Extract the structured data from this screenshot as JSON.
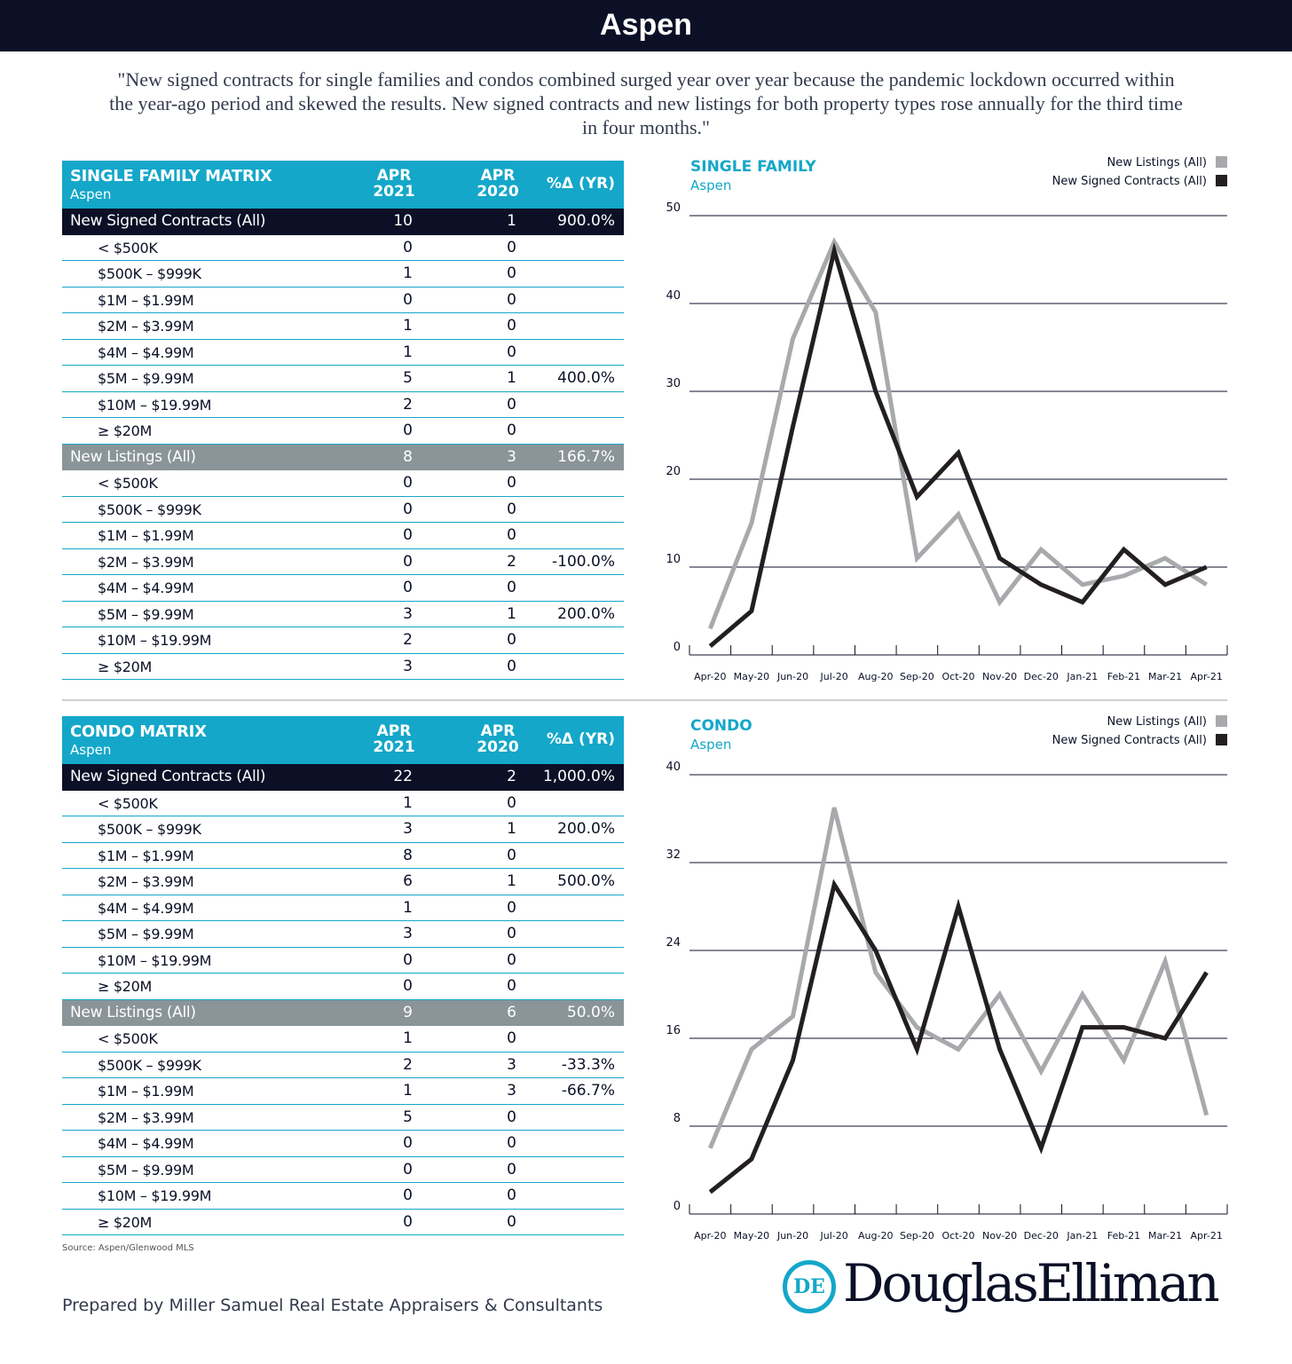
{
  "header": {
    "title": "Aspen"
  },
  "quote": "\"New signed contracts for single families and condos combined surged year over year because the pandemic lockdown occurred within the year-ago period and skewed the results. New signed contracts and new listings for both property types rose annually for the third time in four months.\"",
  "tables": [
    {
      "title": "SINGLE FAMILY MATRIX",
      "subtitle": "Aspen",
      "columns": [
        "APR 2021",
        "APR 2020",
        "%Δ (YR)"
      ],
      "sections": [
        {
          "label": "New Signed Contracts (All)",
          "values": [
            10,
            1
          ],
          "change": "900.0%",
          "rows": [
            {
              "label": "< $500K",
              "values": [
                0,
                0
              ]
            },
            {
              "label": "$500K – $999K",
              "values": [
                1,
                0
              ]
            },
            {
              "label": "$1M – $1.99M",
              "values": [
                0,
                0
              ]
            },
            {
              "label": "$2M – $3.99M",
              "values": [
                1,
                0
              ]
            },
            {
              "label": "$4M – $4.99M",
              "values": [
                1,
                0
              ]
            },
            {
              "label": "$5M – $9.99M",
              "values": [
                5,
                1
              ],
              "change": "400.0%"
            },
            {
              "label": "$10M – $19.99M",
              "values": [
                2,
                0
              ]
            },
            {
              "label": "≥ $20M",
              "values": [
                0,
                0
              ]
            }
          ]
        },
        {
          "label": "New Listings (All)",
          "values": [
            8,
            3
          ],
          "change": "166.7%",
          "rows": [
            {
              "label": "< $500K",
              "values": [
                0,
                0
              ]
            },
            {
              "label": "$500K – $999K",
              "values": [
                0,
                0
              ]
            },
            {
              "label": "$1M – $1.99M",
              "values": [
                0,
                0
              ]
            },
            {
              "label": "$2M – $3.99M",
              "values": [
                0,
                2
              ],
              "change": "-100.0%"
            },
            {
              "label": "$4M – $4.99M",
              "values": [
                0,
                0
              ]
            },
            {
              "label": "$5M – $9.99M",
              "values": [
                3,
                1
              ],
              "change": "200.0%"
            },
            {
              "label": "$10M – $19.99M",
              "values": [
                2,
                0
              ]
            },
            {
              "label": "≥ $20M",
              "values": [
                3,
                0
              ]
            }
          ]
        }
      ]
    },
    {
      "title": "CONDO MATRIX",
      "subtitle": "Aspen",
      "columns": [
        "APR 2021",
        "APR 2020",
        "%Δ (YR)"
      ],
      "sections": [
        {
          "label": "New Signed Contracts (All)",
          "values": [
            22,
            2
          ],
          "change": "1,000.0%",
          "rows": [
            {
              "label": "< $500K",
              "values": [
                1,
                0
              ]
            },
            {
              "label": "$500K – $999K",
              "values": [
                3,
                1
              ],
              "change": "200.0%"
            },
            {
              "label": "$1M – $1.99M",
              "values": [
                8,
                0
              ]
            },
            {
              "label": "$2M – $3.99M",
              "values": [
                6,
                1
              ],
              "change": "500.0%"
            },
            {
              "label": "$4M – $4.99M",
              "values": [
                1,
                0
              ]
            },
            {
              "label": "$5M – $9.99M",
              "values": [
                3,
                0
              ]
            },
            {
              "label": "$10M – $19.99M",
              "values": [
                0,
                0
              ]
            },
            {
              "label": "≥ $20M",
              "values": [
                0,
                0
              ]
            }
          ]
        },
        {
          "label": "New Listings (All)",
          "values": [
            9,
            6
          ],
          "change": "50.0%",
          "rows": [
            {
              "label": "< $500K",
              "values": [
                1,
                0
              ]
            },
            {
              "label": "$500K – $999K",
              "values": [
                2,
                3
              ],
              "change": "-33.3%"
            },
            {
              "label": "$1M – $1.99M",
              "values": [
                1,
                3
              ],
              "change": "-66.7%"
            },
            {
              "label": "$2M – $3.99M",
              "values": [
                5,
                0
              ]
            },
            {
              "label": "$4M – $4.99M",
              "values": [
                0,
                0
              ]
            },
            {
              "label": "$5M – $9.99M",
              "values": [
                0,
                0
              ]
            },
            {
              "label": "$10M – $19.99M",
              "values": [
                0,
                0
              ]
            },
            {
              "label": "≥ $20M",
              "values": [
                0,
                0
              ]
            }
          ]
        }
      ]
    }
  ],
  "source": "Source:  Aspen/Glenwood MLS",
  "footer": {
    "prepared": "Prepared by Miller Samuel Real Estate Appraisers & Consultants",
    "logo": "DouglasElliman"
  },
  "chart_data": [
    {
      "type": "line",
      "title": "SINGLE FAMILY",
      "subtitle": "Aspen",
      "legend": "top-right",
      "categories": [
        "Apr-20",
        "May-20",
        "Jun-20",
        "Jul-20",
        "Aug-20",
        "Sep-20",
        "Oct-20",
        "Nov-20",
        "Dec-20",
        "Jan-21",
        "Feb-21",
        "Mar-21",
        "Apr-21"
      ],
      "series": [
        {
          "name": "New Listings (All)",
          "color": "#a7a9ac",
          "values": [
            3,
            15,
            36,
            47,
            39,
            11,
            16,
            6,
            12,
            8,
            9,
            11,
            8
          ]
        },
        {
          "name": "New Signed Contracts (All)",
          "color": "#231f20",
          "values": [
            1,
            5,
            26,
            46,
            30,
            18,
            23,
            11,
            8,
            6,
            12,
            8,
            10
          ]
        }
      ],
      "ylim": [
        0,
        50
      ],
      "yticks": [
        0,
        10,
        20,
        30,
        40,
        50
      ],
      "grid": true
    },
    {
      "type": "line",
      "title": "CONDO",
      "subtitle": "Aspen",
      "legend": "top-right",
      "categories": [
        "Apr-20",
        "May-20",
        "Jun-20",
        "Jul-20",
        "Aug-20",
        "Sep-20",
        "Oct-20",
        "Nov-20",
        "Dec-20",
        "Jan-21",
        "Feb-21",
        "Mar-21",
        "Apr-21"
      ],
      "series": [
        {
          "name": "New Listings (All)",
          "color": "#a7a9ac",
          "values": [
            6,
            15,
            18,
            37,
            22,
            17,
            15,
            20,
            13,
            20,
            14,
            23,
            9
          ]
        },
        {
          "name": "New Signed Contracts (All)",
          "color": "#231f20",
          "values": [
            2,
            5,
            14,
            30,
            24,
            15,
            28,
            15,
            6,
            17,
            17,
            16,
            22
          ]
        }
      ],
      "ylim": [
        0,
        40
      ],
      "yticks": [
        0,
        8,
        16,
        24,
        32,
        40
      ],
      "grid": true
    }
  ]
}
